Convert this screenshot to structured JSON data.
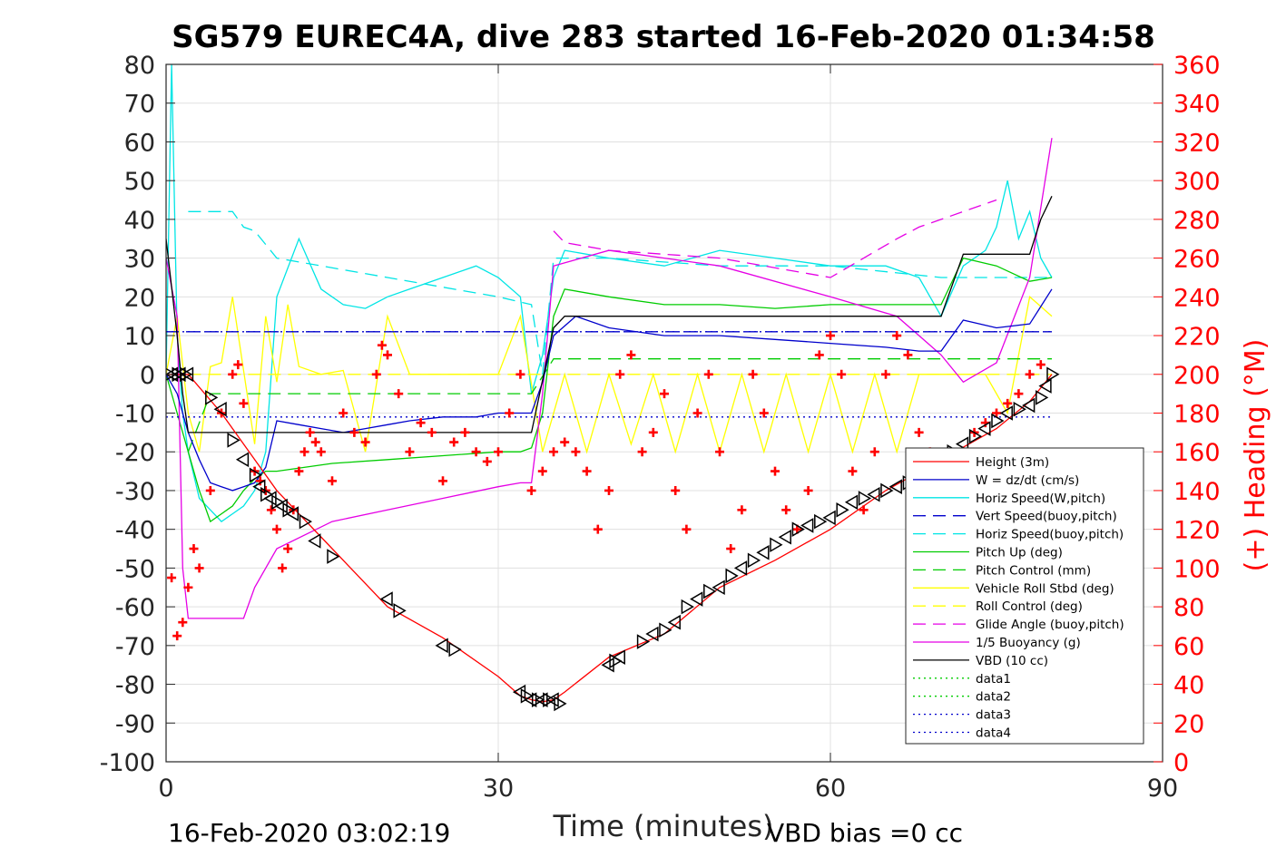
{
  "chart_data": {
    "type": "line",
    "title": "SG579 EUREC4A, dive 283 started 16-Feb-2020 01:34:58",
    "xlabel": "Time (minutes)",
    "ylabel": "",
    "ylabel_right": "(+) Heading (°M)",
    "xlim": [
      0,
      90
    ],
    "ylim": [
      -100,
      80
    ],
    "ylim_right": [
      0,
      360
    ],
    "x_ticks": [
      "0",
      "30",
      "60",
      "90"
    ],
    "y_ticks": [
      "80",
      "70",
      "60",
      "50",
      "40",
      "30",
      "20",
      "10",
      "0",
      "-10",
      "-20",
      "-30",
      "-40",
      "-50",
      "-60",
      "-70",
      "-80",
      "-90",
      "-100"
    ],
    "y_ticks_right": [
      "360",
      "340",
      "320",
      "300",
      "280",
      "260",
      "240",
      "220",
      "200",
      "180",
      "160",
      "140",
      "120",
      "100",
      "80",
      "60",
      "40",
      "20",
      "0"
    ],
    "grid": true,
    "legend_position": "lower-right",
    "footer_left": "16-Feb-2020 03:02:19",
    "footer_right": "VBD bias =0 cc",
    "colors": {
      "height": "#ff0000",
      "w": "#0000cc",
      "horiz_speed_w": "#00e5e5",
      "vert_speed_buoy": "#0000cc",
      "horiz_speed_buoy": "#00e5e5",
      "pitch_up": "#00cc00",
      "pitch_control": "#00cc00",
      "roll": "#ffff00",
      "roll_control": "#ffff00",
      "glide_angle": "#e500e5",
      "buoyancy": "#e500e5",
      "vbd": "#000000",
      "heading": "#ff0000"
    },
    "series": [
      {
        "name": "Height (3m)",
        "x": [
          0,
          2,
          5,
          10,
          15,
          20,
          25,
          30,
          32,
          33,
          34,
          35,
          36,
          40,
          45,
          50,
          55,
          60,
          65,
          70,
          75,
          78,
          80
        ],
        "y": [
          0,
          0,
          -10,
          -30,
          -45,
          -60,
          -68,
          -78,
          -83,
          -84,
          -84.5,
          -84,
          -82,
          -73,
          -67,
          -55,
          -48,
          -40,
          -30,
          -22,
          -14,
          -7,
          0
        ]
      },
      {
        "name": "W = dz/dt (cm/s)",
        "x": [
          0,
          1,
          2,
          3,
          4,
          5,
          6,
          7,
          8,
          9,
          10,
          12,
          14,
          16,
          18,
          20,
          22,
          25,
          28,
          30,
          32,
          33,
          34,
          35,
          37,
          40,
          45,
          50,
          55,
          60,
          65,
          68,
          70,
          72,
          75,
          78,
          80
        ],
        "y": [
          0,
          -5,
          -15,
          -22,
          -28,
          -29,
          -30,
          -29,
          -28,
          -24,
          -12,
          -13,
          -14,
          -15,
          -14,
          -13,
          -12,
          -11,
          -11,
          -10,
          -10,
          -10,
          -2,
          10,
          15,
          12,
          10,
          10,
          9,
          8,
          7,
          6,
          6,
          14,
          12,
          13,
          22
        ]
      },
      {
        "name": "Horiz Speed(W,pitch)",
        "x": [
          0,
          0.5,
          1,
          1.5,
          2,
          3,
          4,
          5,
          6,
          7,
          8,
          9,
          10,
          12,
          14,
          16,
          18,
          20,
          22,
          25,
          28,
          30,
          32,
          33,
          34,
          35,
          36,
          40,
          45,
          50,
          55,
          60,
          65,
          68,
          70,
          72,
          74,
          75,
          76,
          77,
          78,
          79,
          80
        ],
        "y": [
          0,
          80,
          10,
          -10,
          -20,
          -32,
          -35,
          -38,
          -36,
          -34,
          -30,
          -20,
          20,
          35,
          22,
          18,
          17,
          20,
          22,
          25,
          28,
          25,
          20,
          -5,
          5,
          25,
          32,
          30,
          28,
          32,
          30,
          28,
          28,
          25,
          15,
          28,
          32,
          38,
          50,
          35,
          42,
          30,
          25
        ]
      },
      {
        "name": "Vert Speed(buoy,pitch)",
        "x": [
          0,
          80
        ],
        "y": [
          11,
          11
        ]
      },
      {
        "name": "Horiz Speed(buoy,pitch)",
        "x": [
          2,
          4,
          6,
          7,
          8,
          10,
          20,
          30,
          33,
          34,
          35,
          40,
          50,
          60,
          70,
          75,
          80
        ],
        "y": [
          42,
          42,
          42,
          38,
          37,
          30,
          25,
          20,
          18,
          0,
          30,
          30,
          28,
          28,
          25,
          25,
          25
        ]
      },
      {
        "name": "Pitch Up (deg)",
        "x": [
          0,
          1,
          2,
          3,
          4,
          5,
          6,
          7,
          8,
          9,
          10,
          15,
          20,
          25,
          30,
          32,
          33,
          34,
          35,
          36,
          40,
          45,
          50,
          55,
          60,
          65,
          68,
          70,
          72,
          75,
          78,
          80
        ],
        "y": [
          0,
          -10,
          -20,
          -30,
          -38,
          -36,
          -34,
          -30,
          -27,
          -25,
          -25,
          -23,
          -22,
          -21,
          -20,
          -20,
          -19,
          -10,
          15,
          22,
          20,
          18,
          18,
          17,
          18,
          18,
          18,
          18,
          30,
          28,
          24,
          25
        ]
      },
      {
        "name": "Pitch Control (mm)",
        "x": [
          2,
          4,
          6,
          8,
          10,
          20,
          30,
          33,
          35,
          40,
          50,
          60,
          70,
          75,
          80
        ],
        "y": [
          -20,
          -5,
          -5,
          -5,
          -5,
          -5,
          -5,
          -5,
          4,
          4,
          4,
          4,
          4,
          4,
          4
        ]
      },
      {
        "name": "Vehicle Roll Stbd (deg)",
        "x": [
          0,
          1,
          2,
          3,
          4,
          5,
          6,
          7,
          8,
          9,
          10,
          11,
          12,
          14,
          16,
          18,
          20,
          22,
          24,
          26,
          28,
          30,
          32,
          34,
          36,
          38,
          40,
          42,
          44,
          46,
          48,
          50,
          52,
          54,
          56,
          58,
          60,
          62,
          64,
          66,
          68,
          70,
          72,
          74,
          76,
          78,
          80
        ],
        "y": [
          0,
          15,
          -10,
          -20,
          2,
          3,
          20,
          1,
          -18,
          15,
          -2,
          18,
          2,
          0,
          1,
          -20,
          15,
          0,
          0,
          0,
          0,
          0,
          15,
          -20,
          0,
          -20,
          0,
          -18,
          0,
          -20,
          0,
          -20,
          0,
          -20,
          0,
          -20,
          0,
          -20,
          0,
          -20,
          0,
          0,
          0,
          0,
          -10,
          20,
          15
        ]
      },
      {
        "name": "Roll Control (deg)",
        "x": [
          2,
          10,
          20,
          30,
          40,
          50,
          60,
          70,
          80
        ],
        "y": [
          0,
          0,
          0,
          0,
          0,
          0,
          0,
          0,
          0
        ]
      },
      {
        "name": "Glide Angle (buoy,pitch)",
        "x": [
          35,
          36,
          40,
          50,
          60,
          66,
          68,
          70,
          72,
          74,
          75
        ],
        "y": [
          37,
          34,
          32,
          30,
          25,
          35,
          38,
          40,
          42,
          44,
          45
        ]
      },
      {
        "name": "1/5 Buoyancy (g)",
        "x": [
          0,
          1,
          1.5,
          2,
          4,
          6,
          7,
          8,
          10,
          15,
          20,
          25,
          30,
          32,
          33,
          34,
          35,
          40,
          50,
          60,
          66,
          70,
          72,
          75,
          78,
          80
        ],
        "y": [
          30,
          15,
          -50,
          -63,
          -63,
          -63,
          -63,
          -55,
          -45,
          -38,
          -35,
          -32,
          -29,
          -28,
          -28,
          -5,
          28,
          32,
          28,
          20,
          15,
          5,
          -2,
          3,
          25,
          61
        ]
      },
      {
        "name": "VBD (10 cc)",
        "x": [
          0,
          1,
          1.5,
          2,
          10,
          20,
          32,
          33,
          35,
          36,
          40,
          50,
          60,
          69,
          70,
          72,
          74,
          76,
          78,
          79,
          80
        ],
        "y": [
          35,
          10,
          -5,
          -15,
          -15,
          -15,
          -15,
          -15,
          12,
          15,
          15,
          15,
          15,
          15,
          15,
          31,
          31,
          31,
          31,
          40,
          46
        ]
      },
      {
        "name": "data1",
        "x": [],
        "y": []
      },
      {
        "name": "data2",
        "x": [],
        "y": []
      },
      {
        "name": "data3",
        "x": [
          0,
          80
        ],
        "y": [
          11,
          11
        ]
      },
      {
        "name": "data4",
        "x": [
          0,
          80
        ],
        "y": [
          -11,
          -11
        ]
      }
    ],
    "heading": {
      "name": "Heading",
      "axis": "right",
      "x": [
        0.5,
        1,
        1.5,
        2,
        2.5,
        3,
        4,
        5,
        6,
        6.5,
        7,
        8,
        8.5,
        9,
        9.5,
        10,
        10.5,
        11,
        11.5,
        12,
        12.5,
        13,
        13.5,
        14,
        15,
        16,
        17,
        18,
        19,
        19.5,
        20,
        21,
        22,
        23,
        24,
        25,
        26,
        27,
        28,
        29,
        30,
        31,
        32,
        33,
        34,
        35,
        36,
        37,
        38,
        39,
        40,
        41,
        42,
        43,
        44,
        45,
        46,
        47,
        48,
        49,
        50,
        51,
        52,
        53,
        54,
        55,
        56,
        57,
        58,
        59,
        60,
        61,
        62,
        63,
        64,
        65,
        66,
        67,
        68,
        69,
        70,
        71,
        72,
        73,
        74,
        75,
        76,
        77,
        78,
        79
      ],
      "y": [
        95,
        65,
        72,
        90,
        110,
        100,
        140,
        180,
        200,
        205,
        185,
        150,
        145,
        140,
        130,
        120,
        100,
        110,
        130,
        150,
        160,
        170,
        165,
        160,
        145,
        180,
        170,
        165,
        200,
        215,
        210,
        190,
        160,
        175,
        170,
        145,
        165,
        170,
        160,
        155,
        160,
        180,
        200,
        140,
        150,
        160,
        165,
        160,
        150,
        120,
        140,
        200,
        210,
        160,
        170,
        190,
        140,
        120,
        180,
        200,
        160,
        110,
        130,
        200,
        180,
        150,
        130,
        120,
        140,
        210,
        220,
        200,
        150,
        130,
        160,
        200,
        220,
        210,
        170,
        160,
        140,
        150,
        160,
        170,
        175,
        180,
        185,
        190,
        200,
        205
      ]
    },
    "markers": {
      "name": "Triangle markers on Height",
      "x": [
        0.3,
        0.6,
        1,
        1.3,
        1.7,
        2,
        4,
        5,
        6,
        7,
        8,
        8.5,
        9,
        9.5,
        10,
        10.5,
        11,
        11.5,
        12.5,
        13.5,
        15,
        20,
        21,
        25,
        26,
        32,
        32.5,
        33,
        33.5,
        34,
        34.5,
        35,
        35.5,
        40,
        40.5,
        41,
        43,
        44,
        45,
        46,
        47,
        48,
        49,
        50,
        51,
        52,
        53,
        54,
        55,
        56,
        57,
        58,
        59,
        60,
        61,
        62,
        63,
        64,
        65,
        66,
        67,
        68,
        69,
        70,
        71,
        72,
        73,
        74,
        75,
        76,
        77,
        78,
        79,
        79.5,
        80
      ],
      "y": [
        0,
        0,
        0,
        0,
        0,
        0,
        -6,
        -9,
        -17,
        -22,
        -26,
        -29,
        -31,
        -32,
        -33,
        -34,
        -35,
        -36,
        -38,
        -43,
        -47,
        -58,
        -61,
        -70,
        -71,
        -82,
        -83,
        -84,
        -84,
        -84,
        -84,
        -84,
        -85,
        -75,
        -74,
        -73,
        -69,
        -67,
        -66,
        -64,
        -60,
        -58,
        -56,
        -55,
        -52,
        -50,
        -48,
        -46,
        -44,
        -42,
        -40,
        -39,
        -38,
        -37,
        -35,
        -33,
        -32,
        -31,
        -30,
        -29,
        -28,
        -26,
        -24,
        -22,
        -20,
        -18,
        -16,
        -14,
        -12,
        -10,
        -9,
        -8,
        -6,
        -3,
        0
      ]
    }
  }
}
